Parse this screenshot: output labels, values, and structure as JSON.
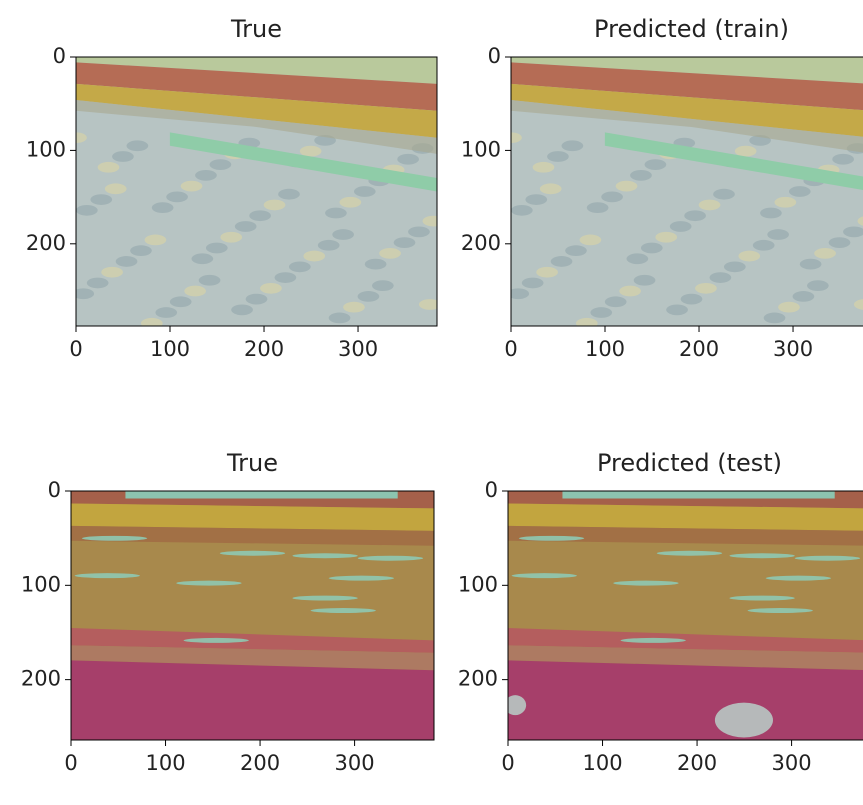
{
  "chart_data": [
    {
      "type": "image",
      "title": "True",
      "xlim": [
        0,
        384
      ],
      "ylim": [
        288,
        0
      ],
      "xticks": [
        0,
        100,
        200,
        300
      ],
      "yticks": [
        0,
        100,
        200
      ]
    },
    {
      "type": "image",
      "title": "Predicted (train)",
      "xlim": [
        0,
        384
      ],
      "ylim": [
        288,
        0
      ],
      "xticks": [
        0,
        100,
        200,
        300
      ],
      "yticks": [
        0,
        100,
        200
      ]
    },
    {
      "type": "image",
      "title": "True",
      "xlim": [
        0,
        384
      ],
      "ylim": [
        264,
        0
      ],
      "xticks": [
        0,
        100,
        200,
        300
      ],
      "yticks": [
        0,
        100,
        200
      ]
    },
    {
      "type": "image",
      "title": "Predicted (test)",
      "xlim": [
        0,
        384
      ],
      "ylim": [
        264,
        0
      ],
      "xticks": [
        0,
        100,
        200,
        300
      ],
      "yticks": [
        0,
        100,
        200
      ]
    }
  ]
}
